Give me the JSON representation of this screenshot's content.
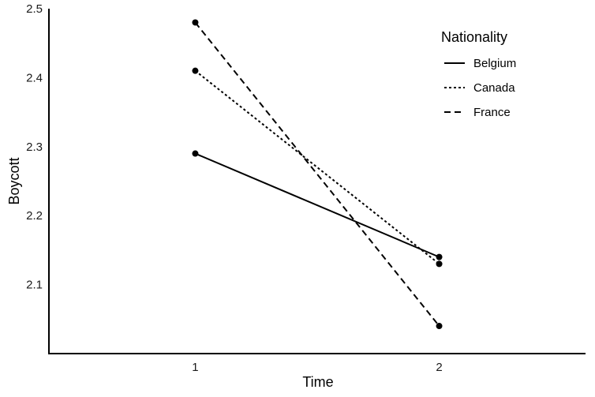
{
  "chart_data": {
    "type": "line",
    "title": "",
    "xlabel": "Time",
    "ylabel": "Boycott",
    "x": [
      1,
      2
    ],
    "x_tick_labels": [
      "1",
      "2"
    ],
    "xlim": [
      0.4,
      2.6
    ],
    "ylim": [
      2.0,
      2.5
    ],
    "y_ticks": [
      2.1,
      2.2,
      2.3,
      2.4,
      2.5
    ],
    "y_tick_labels": [
      "2.1",
      "2.2",
      "2.3",
      "2.4",
      "2.5"
    ],
    "grid": false,
    "legend": {
      "title": "Nationality",
      "position": "top-right"
    },
    "series": [
      {
        "name": "Belgium",
        "values": [
          2.29,
          2.14
        ],
        "line_style": "solid",
        "color": "#000000"
      },
      {
        "name": "Canada",
        "values": [
          2.41,
          2.13
        ],
        "line_style": "dotted",
        "color": "#000000"
      },
      {
        "name": "France",
        "values": [
          2.48,
          2.04
        ],
        "line_style": "dashed",
        "color": "#000000"
      }
    ]
  }
}
